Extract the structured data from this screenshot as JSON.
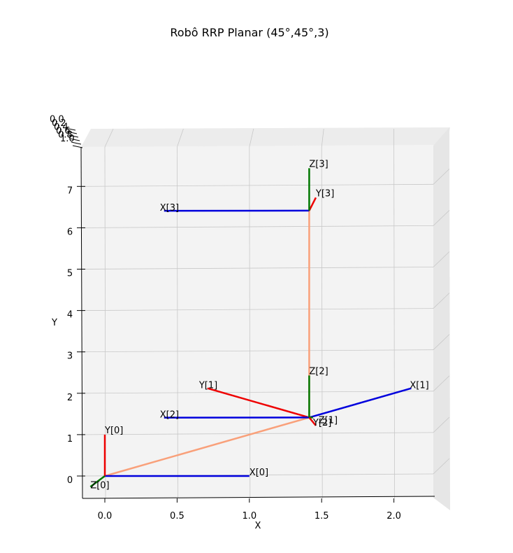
{
  "chart_data": {
    "type": "line",
    "title": "Robô RRP Planar (45°,45°,3)",
    "xlabel": "X",
    "ylabel": "Y",
    "xlim": [
      -0.15,
      2.3
    ],
    "ylim": [
      -0.5,
      7.9
    ],
    "zlim": [
      0.0,
      1.0
    ],
    "x_ticks": [
      "0.0",
      "0.5",
      "1.0",
      "1.5",
      "2.0"
    ],
    "y_ticks": [
      "0",
      "1",
      "2",
      "3",
      "4",
      "5",
      "6",
      "7"
    ],
    "z_ticks": [
      "0.0",
      "0.2",
      "0.4",
      "0.6",
      "0.8",
      "1.0"
    ],
    "grid": true,
    "links": {
      "name": "",
      "color": "#f9a07a",
      "points": [
        [
          0.0,
          0.0
        ],
        [
          1.414,
          1.414
        ],
        [
          1.414,
          6.414
        ]
      ]
    },
    "frames": [
      {
        "id": "0",
        "origin": [
          0,
          0
        ],
        "x_axis": {
          "label": "X[0]",
          "end": [
            1.0,
            0.0
          ]
        },
        "y_axis": {
          "label": "Y[0]",
          "end": [
            0.0,
            1.0
          ]
        },
        "z_axis": {
          "label": "Z[0]",
          "end": [
            -0.1,
            -0.26
          ]
        }
      },
      {
        "id": "1",
        "origin": [
          1.414,
          1.414
        ],
        "x_axis": {
          "label": "X[1]",
          "end": [
            2.12,
            2.12
          ]
        },
        "y_axis": {
          "label": "Y[1]",
          "end": [
            0.71,
            2.12
          ]
        },
        "z_axis": {
          "label": "Z[1]",
          "end": [
            1.44,
            1.414
          ]
        }
      },
      {
        "id": "2",
        "origin": [
          1.414,
          1.414
        ],
        "x_axis": {
          "label": "X[2]",
          "end": [
            0.41,
            1.41
          ]
        },
        "y_axis": {
          "label": "Y[2]",
          "end": [
            1.46,
            1.22
          ]
        },
        "z_axis": {
          "label": "Z[2]",
          "end": [
            1.414,
            2.43
          ]
        }
      },
      {
        "id": "3",
        "origin": [
          1.414,
          6.414
        ],
        "x_axis": {
          "label": "X[3]",
          "end": [
            0.41,
            6.41
          ]
        },
        "y_axis": {
          "label": "Y[3]",
          "end": [
            1.46,
            6.73
          ]
        },
        "z_axis": {
          "label": "Z[3]",
          "end": [
            1.414,
            7.44
          ]
        }
      }
    ],
    "axis_colors": {
      "x": "#0000dd",
      "y": "#ee0000",
      "z": "#007700"
    }
  }
}
